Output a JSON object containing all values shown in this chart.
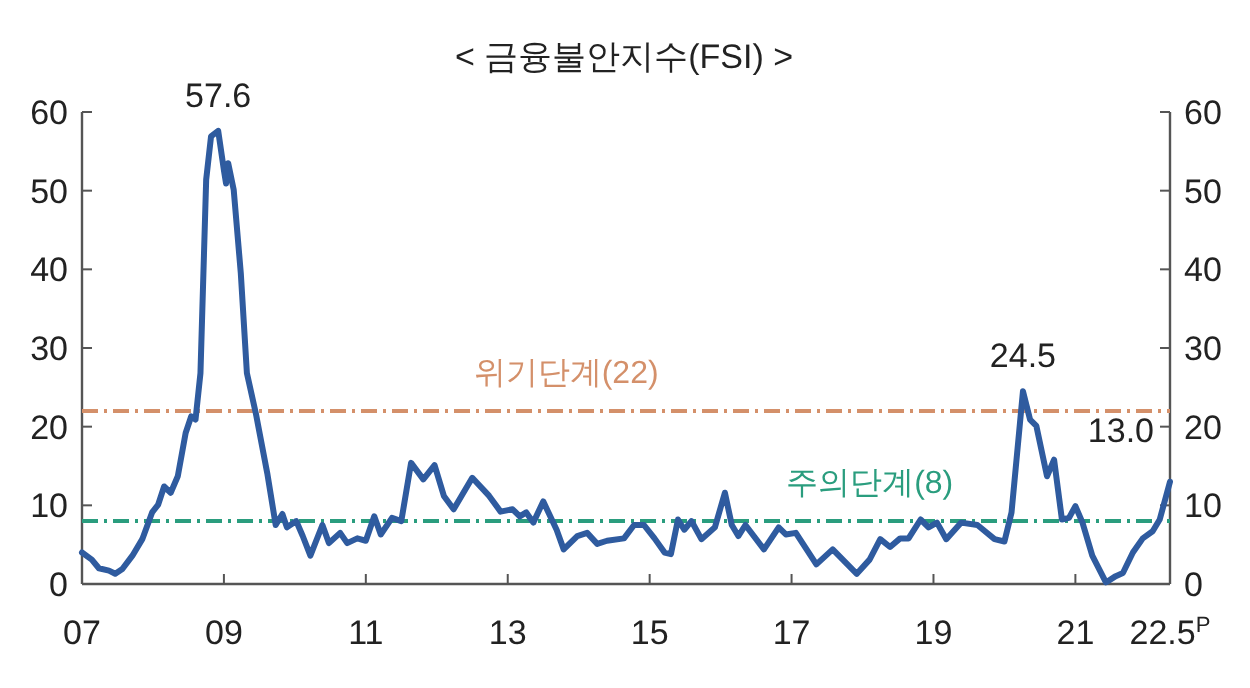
{
  "chart_data": {
    "type": "line",
    "title": "< 금융불안지수(FSI) >",
    "x": [
      "2007-01-01",
      "2007-02-21",
      "2007-03-27",
      "2007-05-18",
      "2007-06-20",
      "2007-07-26",
      "2007-09-17",
      "2007-11-07",
      "2007-12-27",
      "2008-01-28",
      "2008-02-28",
      "2008-04-01",
      "2008-05-07",
      "2008-06-17",
      "2008-07-15",
      "2008-08-07",
      "2008-09-02",
      "2008-10-01",
      "2008-10-26",
      "2008-12-02",
      "2009-01-01",
      "2009-01-12",
      "2009-01-23",
      "2009-02-21",
      "2009-03-27",
      "2009-04-28",
      "2009-06-13",
      "2009-08-11",
      "2009-09-24",
      "2009-10-28",
      "2009-11-21",
      "2010-01-08",
      "2010-02-11",
      "2010-03-20",
      "2010-05-21",
      "2010-06-24",
      "2010-08-21",
      "2010-09-27",
      "2010-11-18",
      "2011-01-01",
      "2011-02-14",
      "2011-03-17",
      "2011-05-14",
      "2011-07-01",
      "2011-08-21",
      "2011-10-23",
      "2011-12-20",
      "2012-02-07",
      "2012-03-27",
      "2012-07-01",
      "2012-09-27",
      "2012-11-25",
      "2013-01-26",
      "2013-03-02",
      "2013-04-05",
      "2013-05-11",
      "2013-07-01",
      "2013-09-09",
      "2013-10-15",
      "2013-12-24",
      "2014-02-14",
      "2014-04-05",
      "2014-05-25",
      "2014-08-21",
      "2014-10-12",
      "2014-12-02",
      "2015-01-26",
      "2015-03-17",
      "2015-04-19",
      "2015-05-25",
      "2015-06-27",
      "2015-08-03",
      "2015-09-24",
      "2015-12-02",
      "2016-01-23",
      "2016-02-28",
      "2016-04-01",
      "2016-05-07",
      "2016-08-11",
      "2016-10-26",
      "2016-12-02",
      "2017-01-23",
      "2017-05-07",
      "2017-07-30",
      "2017-12-02",
      "2018-02-07",
      "2018-04-01",
      "2018-05-21",
      "2018-07-12",
      "2018-08-25",
      "2018-10-26",
      "2018-12-06",
      "2019-01-19",
      "2019-03-06",
      "2019-05-21",
      "2019-08-14",
      "2019-11-11",
      "2020-01-01",
      "2020-02-07",
      "2020-04-05",
      "2020-05-11",
      "2020-06-13",
      "2020-08-07",
      "2020-09-13",
      "2020-10-23",
      "2020-11-29",
      "2021-01-01",
      "2021-02-07",
      "2021-03-27",
      "2021-06-06",
      "2021-07-26",
      "2021-09-02",
      "2021-10-23",
      "2021-12-13",
      "2022-02-03",
      "2022-03-09",
      "2022-05-01"
    ],
    "series": [
      {
        "color": "#2f5b9f",
        "values": [
          4.0,
          3.1,
          2.0,
          1.7,
          1.3,
          1.9,
          3.6,
          5.7,
          9.1,
          10.1,
          12.4,
          11.6,
          13.7,
          19.2,
          21.3,
          20.9,
          26.8,
          51.4,
          56.9,
          57.6,
          52.6,
          50.9,
          53.5,
          50.1,
          39.5,
          26.8,
          21.7,
          14.1,
          7.5,
          8.9,
          7.2,
          8.0,
          6.1,
          3.6,
          7.5,
          5.2,
          6.5,
          5.2,
          5.8,
          5.5,
          8.6,
          6.3,
          8.4,
          8.0,
          15.4,
          13.3,
          15.1,
          11.2,
          9.5,
          13.5,
          11.2,
          9.2,
          9.5,
          8.6,
          9.1,
          7.8,
          10.5,
          6.9,
          4.4,
          6.1,
          6.5,
          5.1,
          5.5,
          5.8,
          7.5,
          7.5,
          5.8,
          4.0,
          3.8,
          8.2,
          6.9,
          8.0,
          5.7,
          7.2,
          11.6,
          7.5,
          6.1,
          7.5,
          4.4,
          7.2,
          6.3,
          6.5,
          2.5,
          4.4,
          1.3,
          3.1,
          5.7,
          4.7,
          5.8,
          5.8,
          8.2,
          7.2,
          7.8,
          5.7,
          7.8,
          7.5,
          5.7,
          5.4,
          9.1,
          24.5,
          20.9,
          20.1,
          13.7,
          15.8,
          8.2,
          8.4,
          9.9,
          7.8,
          3.6,
          0.2,
          1.0,
          1.4,
          4.0,
          5.8,
          6.7,
          8.2,
          13.0
        ]
      }
    ],
    "xlim": [
      "2007-01",
      "2022-05"
    ],
    "xticks": [
      {
        "value": "2007",
        "label": "07"
      },
      {
        "value": "2009",
        "label": "09"
      },
      {
        "value": "2011",
        "label": "11"
      },
      {
        "value": "2013",
        "label": "13"
      },
      {
        "value": "2015",
        "label": "15"
      },
      {
        "value": "2017",
        "label": "17"
      },
      {
        "value": "2019",
        "label": "19"
      },
      {
        "value": "2021",
        "label": "21"
      },
      {
        "value": "2022-05",
        "label": "22.5$^{P}$"
      }
    ],
    "ylim": [
      0,
      60
    ],
    "yticks": [
      0,
      10,
      20,
      30,
      40,
      50,
      60
    ],
    "y2lim": [
      0,
      60
    ],
    "y2ticks": [
      0,
      10,
      20,
      30,
      40,
      50,
      60
    ],
    "ref_lines": [
      {
        "axis": "y",
        "value": 22,
        "label": "위기단계(22)",
        "color": "#d4906a",
        "line_style": "dashdot"
      },
      {
        "axis": "y",
        "value": 8,
        "label": "주의단계(8)",
        "color": "#2a9d7e",
        "line_style": "dashdot"
      }
    ],
    "annotations": [
      {
        "text": "57.6",
        "x": "2008-12-02",
        "y": 57.6
      },
      {
        "text": "24.5",
        "x": "2020-04-05",
        "y": 24.5
      },
      {
        "text": "13.0",
        "x": "2022-05-01",
        "y": 13.0
      }
    ],
    "grid": false,
    "marker": "none",
    "line_style": "solid"
  }
}
